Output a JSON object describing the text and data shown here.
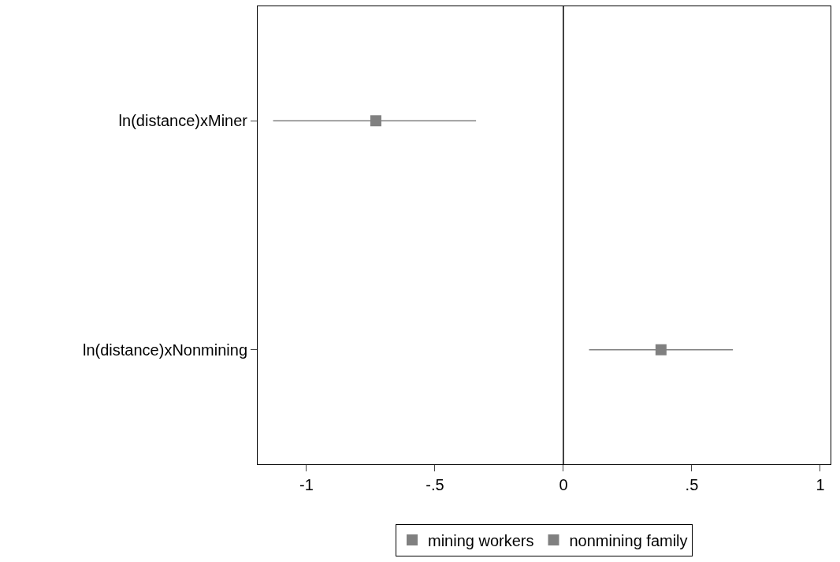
{
  "chart_data": {
    "type": "scatter",
    "orientation": "horizontal",
    "categories": [
      "ln(distance)xMiner",
      "ln(distance)xNonmining"
    ],
    "series": [
      {
        "name": "mining workers",
        "color": "#808080",
        "values": [
          -0.73,
          null
        ],
        "errors": [
          [
            -1.13,
            -0.34
          ],
          null
        ]
      },
      {
        "name": "nonmining family",
        "color": "#808080",
        "values": [
          null,
          0.38
        ],
        "errors": [
          null,
          [
            0.1,
            0.66
          ]
        ]
      }
    ],
    "xlim": [
      -1.19,
      1.04
    ],
    "xticks": [
      {
        "value": -1,
        "label": "-1"
      },
      {
        "value": -0.5,
        "label": "-.5"
      },
      0,
      {
        "value": 0.5,
        "label": ".5"
      },
      1
    ],
    "ref_lines": [
      {
        "axis": "x",
        "value": 0,
        "color": "#000000"
      }
    ],
    "marker": "square",
    "legend": "bottom"
  }
}
